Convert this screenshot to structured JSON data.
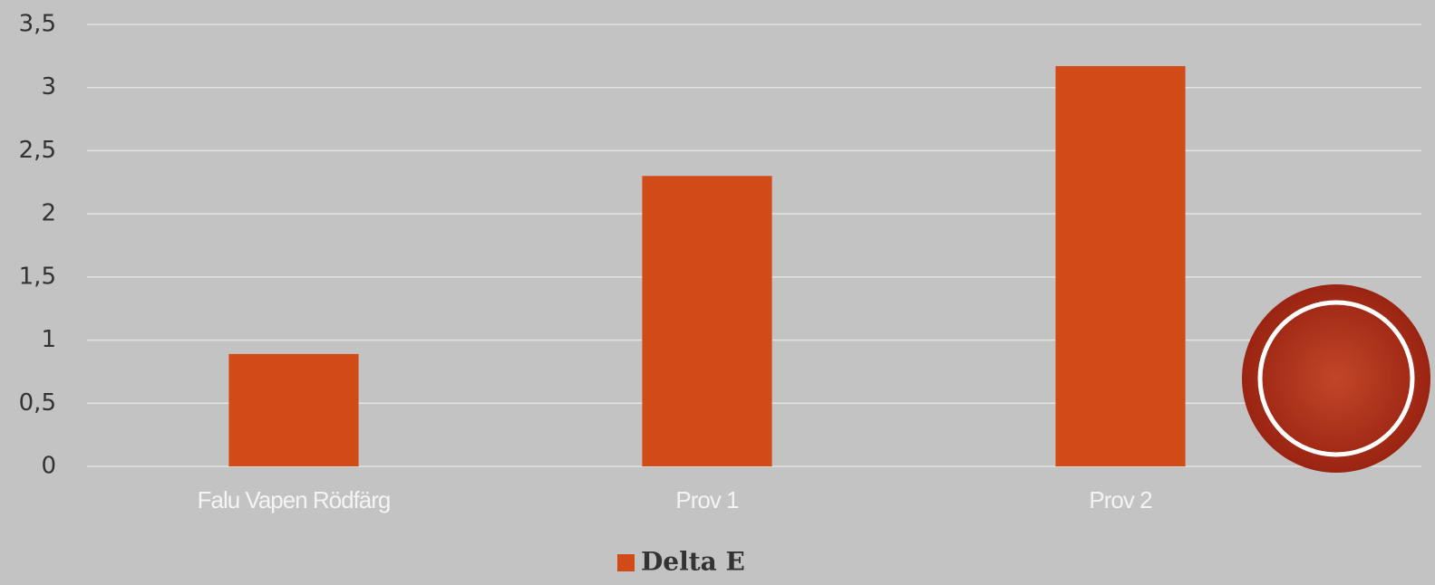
{
  "chart_data": {
    "type": "bar",
    "categories": [
      "Falu Vapen Rödfärg",
      "Prov 1",
      "Prov 2"
    ],
    "series": [
      {
        "name": "Delta E",
        "color": "#d24a17",
        "values": [
          0.89,
          2.3,
          3.17
        ]
      }
    ],
    "ylim": [
      0,
      3.5
    ],
    "yticks": [
      0,
      {
        "value": 0.5,
        "label": "0,5"
      },
      1,
      {
        "value": 1.5,
        "label": "1,5"
      },
      2,
      {
        "value": 2.5,
        "label": "2,5"
      },
      3,
      {
        "value": 3.5,
        "label": "3,5"
      }
    ],
    "grid": true,
    "legend": "bottom"
  }
}
